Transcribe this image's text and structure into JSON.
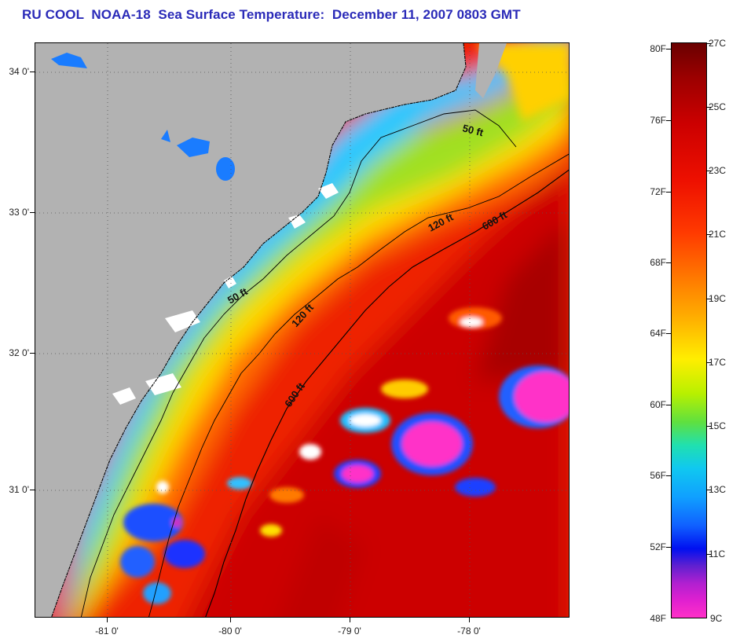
{
  "title": "RU COOL  NOAA-18  Sea Surface Temperature:  December 11, 2007 0803 GMT",
  "map": {
    "land_color": "#b2b2b2",
    "latitude_labels": [
      "34 0'",
      "33 0'",
      "32 0'",
      "31 0'"
    ],
    "longitude_labels": [
      "-81 0'",
      "-80 0'",
      "-79 0'",
      "-78 0'"
    ],
    "isobath_labels": {
      "inner": [
        "50 ft",
        "50 ft"
      ],
      "middle": [
        "120 ft",
        "120 ft"
      ],
      "outer": [
        "600 ft",
        "600 ft"
      ]
    }
  },
  "colorbar": {
    "fahrenheit_labels": [
      "80F",
      "76F",
      "72F",
      "68F",
      "64F",
      "60F",
      "56F",
      "52F",
      "48F"
    ],
    "celsius_labels": [
      "27C",
      "25C",
      "23C",
      "21C",
      "19C",
      "17C",
      "15C",
      "13C",
      "11C",
      "9C"
    ]
  }
}
